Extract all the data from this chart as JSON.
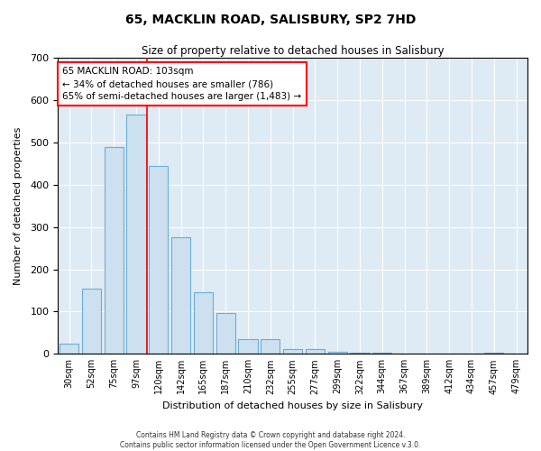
{
  "title": "65, MACKLIN ROAD, SALISBURY, SP2 7HD",
  "subtitle": "Size of property relative to detached houses in Salisbury",
  "xlabel": "Distribution of detached houses by size in Salisbury",
  "ylabel": "Number of detached properties",
  "bar_labels": [
    "30sqm",
    "52sqm",
    "75sqm",
    "97sqm",
    "120sqm",
    "142sqm",
    "165sqm",
    "187sqm",
    "210sqm",
    "232sqm",
    "255sqm",
    "277sqm",
    "299sqm",
    "322sqm",
    "344sqm",
    "367sqm",
    "389sqm",
    "412sqm",
    "434sqm",
    "457sqm",
    "479sqm"
  ],
  "bar_values": [
    25,
    155,
    490,
    565,
    445,
    275,
    145,
    97,
    35,
    35,
    12,
    12,
    5,
    2,
    2,
    0,
    0,
    0,
    0,
    3,
    0
  ],
  "bar_color": "#cce0ef",
  "bar_edge_color": "#6aadd5",
  "ylim": [
    0,
    700
  ],
  "yticks": [
    0,
    100,
    200,
    300,
    400,
    500,
    600,
    700
  ],
  "property_line_label": "65 MACKLIN ROAD: 103sqm",
  "annotation_line1": "← 34% of detached houses are smaller (786)",
  "annotation_line2": "65% of semi-detached houses are larger (1,483) →",
  "footer1": "Contains HM Land Registry data © Crown copyright and database right 2024.",
  "footer2": "Contains public sector information licensed under the Open Government Licence v.3.0.",
  "background_color": "#deeaf4",
  "grid_color": "#ffffff",
  "fig_bg_color": "#ffffff",
  "red_line_x": 3.5
}
